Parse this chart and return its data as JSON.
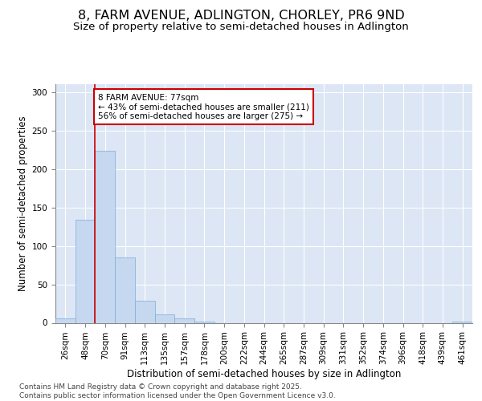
{
  "title_line1": "8, FARM AVENUE, ADLINGTON, CHORLEY, PR6 9ND",
  "title_line2": "Size of property relative to semi-detached houses in Adlington",
  "xlabel": "Distribution of semi-detached houses by size in Adlington",
  "ylabel": "Number of semi-detached properties",
  "categories": [
    "26sqm",
    "48sqm",
    "70sqm",
    "91sqm",
    "113sqm",
    "135sqm",
    "157sqm",
    "178sqm",
    "200sqm",
    "222sqm",
    "244sqm",
    "265sqm",
    "287sqm",
    "309sqm",
    "331sqm",
    "352sqm",
    "374sqm",
    "396sqm",
    "418sqm",
    "439sqm",
    "461sqm"
  ],
  "values": [
    6,
    134,
    224,
    85,
    29,
    11,
    6,
    2,
    0,
    0,
    0,
    0,
    0,
    0,
    0,
    0,
    0,
    0,
    0,
    0,
    2
  ],
  "bar_color": "#c5d8f0",
  "bar_edge_color": "#7aadd4",
  "annotation_text": "8 FARM AVENUE: 77sqm\n← 43% of semi-detached houses are smaller (211)\n56% of semi-detached houses are larger (275) →",
  "annotation_box_color": "#ffffff",
  "annotation_box_edge_color": "#cc0000",
  "vline_color": "#cc0000",
  "background_color": "#dce6f5",
  "ylim": [
    0,
    310
  ],
  "yticks": [
    0,
    50,
    100,
    150,
    200,
    250,
    300
  ],
  "footer_text": "Contains HM Land Registry data © Crown copyright and database right 2025.\nContains public sector information licensed under the Open Government Licence v3.0.",
  "title_fontsize": 11.5,
  "subtitle_fontsize": 9.5,
  "axis_label_fontsize": 8.5,
  "tick_fontsize": 7.5,
  "annotation_fontsize": 7.5,
  "footer_fontsize": 6.5
}
